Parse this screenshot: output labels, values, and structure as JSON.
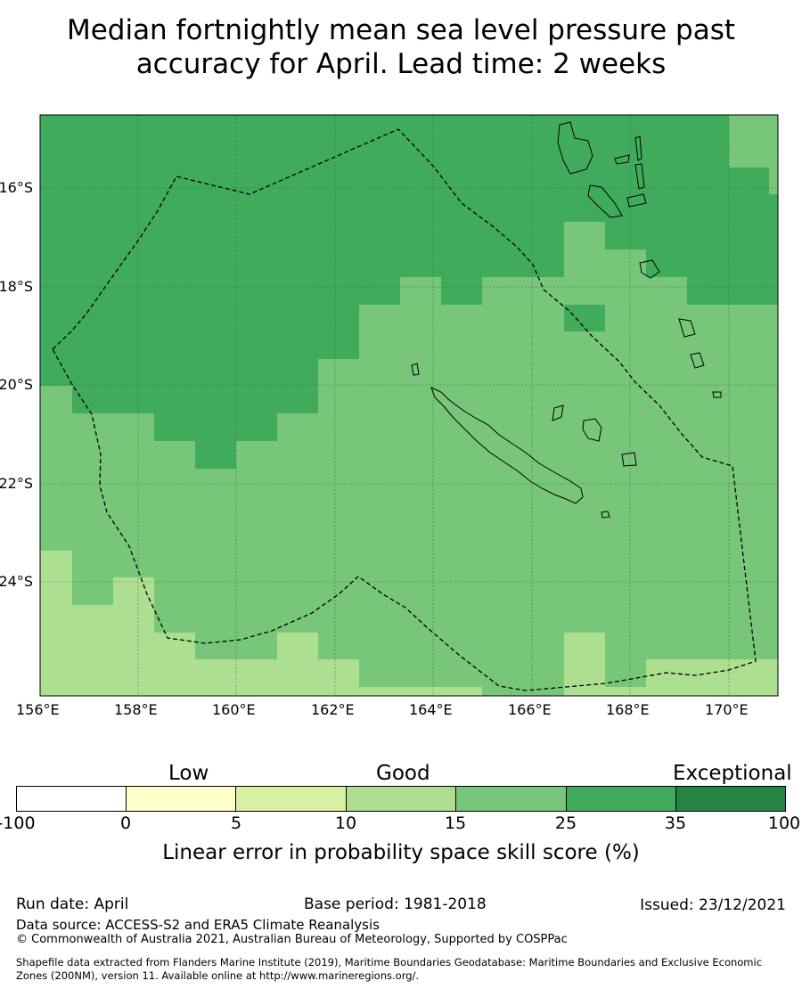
{
  "title_line1": "Median fortnightly mean sea level pressure past",
  "title_line2": "accuracy for April. Lead time: 2 weeks",
  "map": {
    "lon_labels": [
      "156°E",
      "158°E",
      "160°E",
      "162°E",
      "164°E",
      "166°E",
      "168°E",
      "170°E"
    ],
    "lat_labels": [
      "16°S",
      "18°S",
      "20°S",
      "22°S",
      "24°S"
    ],
    "lon_range": [
      156,
      171
    ],
    "lat_range": [
      -26.3,
      -14.5
    ],
    "colors": {
      "skill_10_15": "#addf91",
      "skill_15_25": "#77c679",
      "skill_25_35": "#40ab5d"
    },
    "boundary": "dashed EEZ outline",
    "land": "New Caledonia, Loyalty Islands, Vanuatu outlines"
  },
  "colorbar": {
    "categories": [
      "Low",
      "Good",
      "Exceptional"
    ],
    "ticks": [
      "-100",
      "0",
      "5",
      "10",
      "15",
      "25",
      "35",
      "100"
    ],
    "colors": [
      "#ffffff",
      "#ffffcc",
      "#d9f0a3",
      "#addd8e",
      "#78c679",
      "#41ab5d",
      "#238443"
    ],
    "title": "Linear error in probability space skill score (%)"
  },
  "footer": {
    "run_date": "Run date: April",
    "base_period": "Base period: 1981-2018",
    "issued": "Issued: 23/12/2021",
    "data_source": "Data source: ACCESS-S2 and ERA5 Climate Reanalysis",
    "copyright": "© Commonwealth of Australia 2021, Australian Bureau of Meteorology, Supported by COSPPac",
    "shapefile_1": "Shapefile data extracted from Flanders Marine Institute (2019), Maritime Boundaries Geodatabase: Maritime Boundaries and Exclusive Economic",
    "shapefile_2": "Zones (200NM), version 11. Available online at http://www.marineregions.org/."
  }
}
